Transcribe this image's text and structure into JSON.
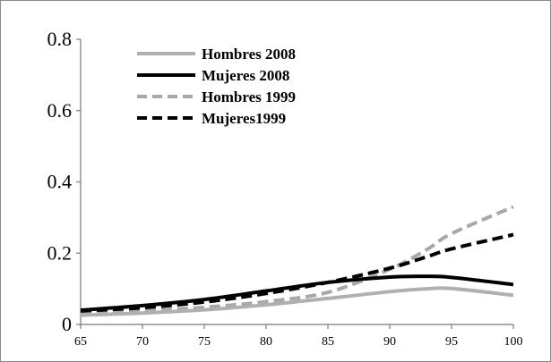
{
  "chart_data": {
    "type": "line",
    "title": "",
    "xlabel": "",
    "ylabel": "",
    "xlim": [
      65,
      100
    ],
    "ylim": [
      0,
      0.8
    ],
    "x_ticks": [
      "65",
      "70",
      "75",
      "80",
      "85",
      "90",
      "95",
      "100"
    ],
    "y_ticks": [
      "0",
      "0.2",
      "0.4",
      "0.6",
      "0.8"
    ],
    "grid": false,
    "legend_position": "top-left",
    "x": [
      65,
      70,
      75,
      80,
      85,
      90,
      93,
      95,
      100
    ],
    "series": [
      {
        "name": "Hombres 2008",
        "color": "#b0b0b0",
        "style": "solid",
        "values": [
          0.026,
          0.032,
          0.041,
          0.055,
          0.073,
          0.092,
          0.1,
          0.101,
          0.082
        ]
      },
      {
        "name": "Mujeres 2008",
        "color": "#000000",
        "style": "solid",
        "values": [
          0.04,
          0.053,
          0.07,
          0.094,
          0.118,
          0.133,
          0.135,
          0.132,
          0.112
        ]
      },
      {
        "name": "Hombres 1999",
        "color": "#a8a8a8",
        "style": "dashed",
        "values": [
          0.029,
          0.038,
          0.048,
          0.064,
          0.09,
          0.155,
          0.21,
          0.255,
          0.33
        ]
      },
      {
        "name": "Mujeres1999",
        "color": "#000000",
        "style": "dashed",
        "values": [
          0.038,
          0.047,
          0.063,
          0.087,
          0.118,
          0.158,
          0.19,
          0.212,
          0.252
        ]
      }
    ]
  }
}
